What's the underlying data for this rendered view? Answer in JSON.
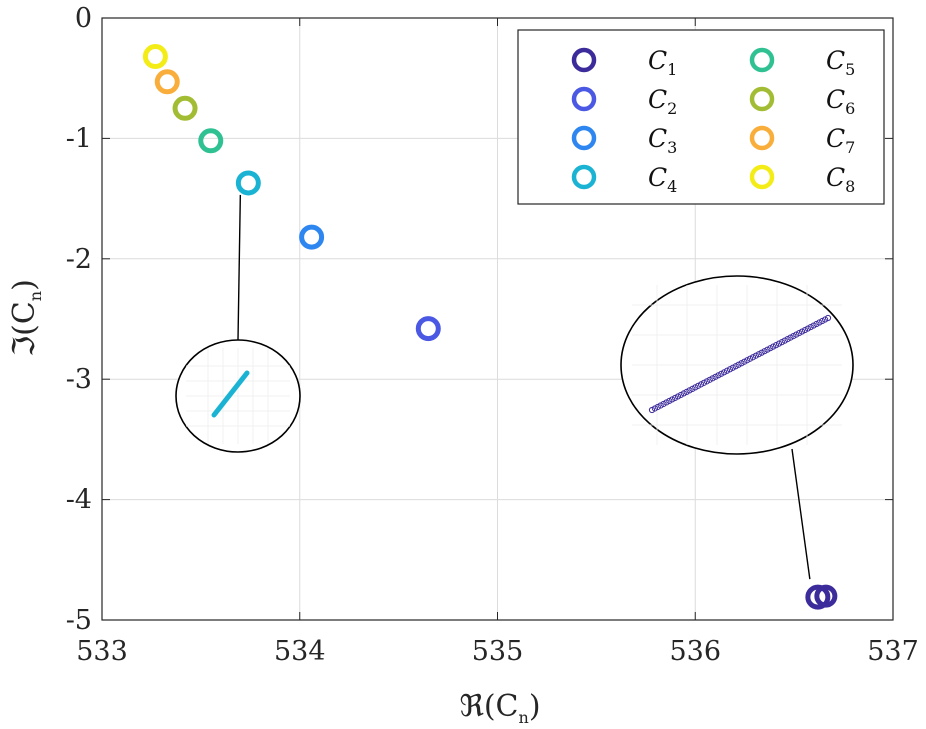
{
  "chart_data": {
    "type": "scatter",
    "xlabel": "ℜ(C",
    "xlabel_sub": "n",
    "xlabel_close": ")",
    "ylabel": "ℑ(C",
    "ylabel_sub": "n",
    "ylabel_close": ")",
    "xlim": [
      533,
      537
    ],
    "ylim": [
      -5,
      0
    ],
    "xticks": [
      533,
      534,
      535,
      536,
      537
    ],
    "xtick_labels": [
      "533",
      "534",
      "535",
      "536",
      "537"
    ],
    "yticks": [
      0,
      -1,
      -2,
      -3,
      -4,
      -5
    ],
    "ytick_labels": [
      "0",
      "-1",
      "-2",
      "-3",
      "-4",
      "-5"
    ],
    "grid": true,
    "legend_placement": "top-right",
    "series": [
      {
        "name": "C",
        "sub": "1",
        "color": "#3c2b9b",
        "x": 536.62,
        "y": -4.81
      },
      {
        "name": "C",
        "sub": "2",
        "color": "#4a58e3",
        "x": 534.65,
        "y": -2.58
      },
      {
        "name": "C",
        "sub": "3",
        "color": "#2e86f0",
        "x": 534.06,
        "y": -1.82
      },
      {
        "name": "C",
        "sub": "4",
        "color": "#1bb3d3",
        "x": 533.74,
        "y": -1.37
      },
      {
        "name": "C",
        "sub": "5",
        "color": "#30c193",
        "x": 533.55,
        "y": -1.02
      },
      {
        "name": "C",
        "sub": "6",
        "color": "#a2bd34",
        "x": 533.42,
        "y": -0.75
      },
      {
        "name": "C",
        "sub": "7",
        "color": "#f9ad3a",
        "x": 533.33,
        "y": -0.53
      },
      {
        "name": "C",
        "sub": "8",
        "color": "#f4ec17",
        "x": 533.27,
        "y": -0.32
      }
    ],
    "insets": [
      {
        "target_series": "4",
        "x_range": [
          533.71,
          533.77
        ],
        "y_range": [
          -1.41,
          -1.33
        ]
      },
      {
        "target_series": "1",
        "x_range": [
          536.58,
          536.66
        ],
        "y_range": [
          -4.84,
          -4.78
        ]
      }
    ]
  }
}
